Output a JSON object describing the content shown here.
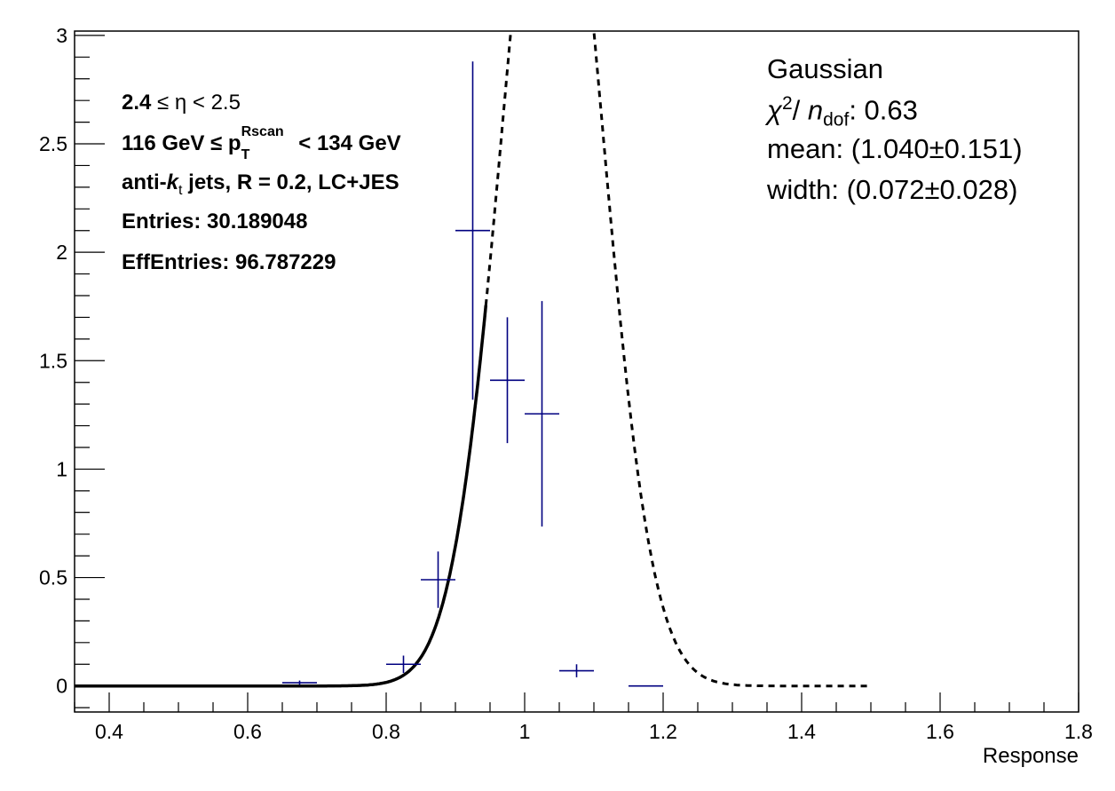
{
  "chart_data": {
    "type": "scatter",
    "xlabel": "Response",
    "ylabel": "",
    "xlim": [
      0.35,
      1.8
    ],
    "ylim": [
      -0.12,
      3.02
    ],
    "x_ticks": [
      "0.4",
      "0.6",
      "0.8",
      "1",
      "1.2",
      "1.4",
      "1.6",
      "1.8"
    ],
    "y_ticks": [
      "0",
      "0.5",
      "1",
      "1.5",
      "2",
      "2.5",
      "3"
    ],
    "series": [
      {
        "kind": "histogram-points",
        "color": "#000080",
        "points": [
          {
            "x": 0.675,
            "y": 0.015,
            "xerr": 0.025,
            "yerr": 0.01
          },
          {
            "x": 0.825,
            "y": 0.1,
            "xerr": 0.025,
            "yerr": 0.04
          },
          {
            "x": 0.875,
            "y": 0.49,
            "xerr": 0.025,
            "yerr": 0.13
          },
          {
            "x": 0.925,
            "y": 2.1,
            "xerr": 0.025,
            "yerr": 0.78
          },
          {
            "x": 0.975,
            "y": 1.41,
            "xerr": 0.025,
            "yerr": 0.29
          },
          {
            "x": 1.025,
            "y": 1.255,
            "xerr": 0.025,
            "yerr": 0.52
          },
          {
            "x": 1.075,
            "y": 0.07,
            "xerr": 0.025,
            "yerr": 0.03
          },
          {
            "x": 1.175,
            "y": 0.0,
            "xerr": 0.025,
            "yerr": 0.0
          }
        ]
      },
      {
        "kind": "gaussian-fit",
        "style": "solid",
        "color": "#000000",
        "amplitude": 4.27,
        "mean": 1.04,
        "sigma": 0.072,
        "x_range": [
          0.35,
          0.945
        ]
      },
      {
        "kind": "gaussian-extrapolation",
        "style": "dashed",
        "color": "#000000",
        "amplitude": 4.27,
        "mean": 1.04,
        "sigma": 0.072,
        "x_range": [
          0.35,
          1.5
        ]
      }
    ]
  },
  "info": {
    "eta_lo": "2.4",
    "eta_mid": "≤ η < 2.5",
    "pt_lo": "116 GeV",
    "pt_le": "≤ p",
    "pt_sup": "Rscan",
    "pt_sub": "T",
    "pt_hi": "< 134 GeV",
    "jets_a": "anti-",
    "jets_k": "k",
    "jets_t": "t",
    "jets_b": " jets, R = 0.2, LC+JES",
    "entries": "Entries: 30.189048",
    "effentries": "EffEntries: 96.787229"
  },
  "fit": {
    "name": "Gaussian",
    "chi": "χ",
    "chi_sup": "2",
    "slash": "/",
    "n": "n",
    "dof": "dof",
    "chi_val": ": 0.63",
    "mean": "mean: (1.040±0.151)",
    "width": "width: (0.072±0.028)"
  }
}
